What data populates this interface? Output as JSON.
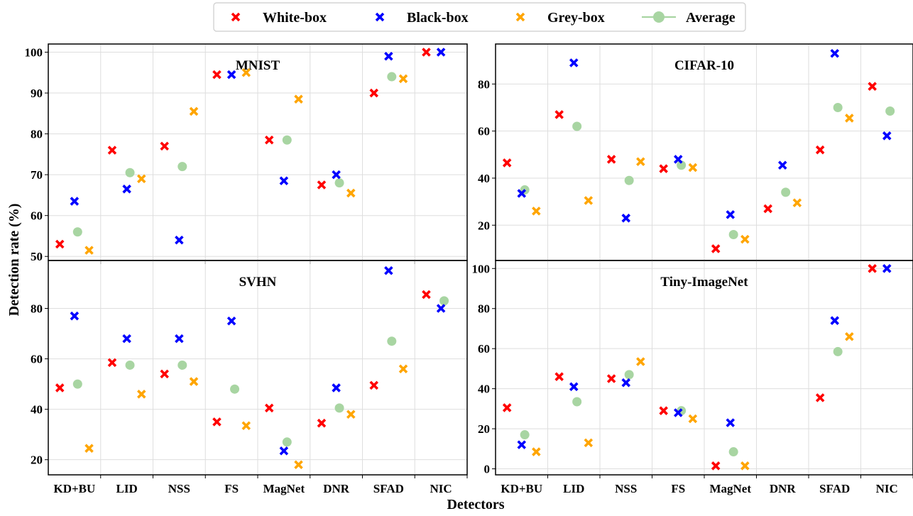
{
  "legend": {
    "items": [
      {
        "label": "White-box",
        "color": "#ff0000",
        "marker": "x"
      },
      {
        "label": "Black-box",
        "color": "#0000ff",
        "marker": "x"
      },
      {
        "label": "Grey-box",
        "color": "#ffa500",
        "marker": "x"
      },
      {
        "label": "Average",
        "color": "#a8d5a2",
        "marker": "circle-line"
      }
    ]
  },
  "xlabel": "Detectors",
  "ylabel": "Detection rate (%)",
  "chart_data": [
    {
      "type": "scatter",
      "title": "MNIST",
      "categories": [
        "KD+BU",
        "LID",
        "NSS",
        "FS",
        "MagNet",
        "DNR",
        "SFAD",
        "NIC"
      ],
      "ylim": [
        49,
        102
      ],
      "yticks": [
        50,
        60,
        70,
        80,
        90,
        100
      ],
      "show_xticklabels": false,
      "grid": true,
      "series": [
        {
          "name": "White-box",
          "values": [
            53,
            76,
            77,
            94.5,
            78.5,
            67.5,
            90,
            100
          ]
        },
        {
          "name": "Black-box",
          "values": [
            63.5,
            66.5,
            54,
            94.5,
            68.5,
            70,
            99,
            100
          ]
        },
        {
          "name": "Grey-box",
          "values": [
            51.5,
            69,
            85.5,
            95,
            88.5,
            65.5,
            93.5,
            null
          ]
        },
        {
          "name": "Average",
          "values": [
            56,
            70.5,
            72,
            null,
            78.5,
            68,
            94,
            null
          ]
        }
      ]
    },
    {
      "type": "scatter",
      "title": "CIFAR-10",
      "categories": [
        "KD+BU",
        "LID",
        "NSS",
        "FS",
        "MagNet",
        "DNR",
        "SFAD",
        "NIC"
      ],
      "ylim": [
        5,
        97
      ],
      "yticks": [
        20,
        40,
        60,
        80
      ],
      "show_xticklabels": false,
      "grid": true,
      "series": [
        {
          "name": "White-box",
          "values": [
            46.5,
            67,
            48,
            44,
            10,
            27,
            52,
            79
          ]
        },
        {
          "name": "Black-box",
          "values": [
            33.5,
            89,
            23,
            48,
            24.5,
            45.5,
            93,
            58
          ]
        },
        {
          "name": "Grey-box",
          "values": [
            26,
            30.5,
            47,
            44.5,
            14,
            29.5,
            65.5,
            null
          ]
        },
        {
          "name": "Average",
          "values": [
            35,
            62,
            39,
            45.5,
            16,
            34,
            70,
            68.5
          ]
        }
      ]
    },
    {
      "type": "scatter",
      "title": "SVHN",
      "categories": [
        "KD+BU",
        "LID",
        "NSS",
        "FS",
        "MagNet",
        "DNR",
        "SFAD",
        "NIC"
      ],
      "ylim": [
        14,
        99
      ],
      "yticks": [
        20,
        40,
        60,
        80
      ],
      "show_xticklabels": true,
      "grid": true,
      "series": [
        {
          "name": "White-box",
          "values": [
            48.5,
            58.5,
            54,
            35,
            40.5,
            34.5,
            49.5,
            85.5
          ]
        },
        {
          "name": "Black-box",
          "values": [
            77,
            68,
            68,
            75,
            23.5,
            48.5,
            95,
            80
          ]
        },
        {
          "name": "Grey-box",
          "values": [
            24.5,
            46,
            51,
            33.5,
            18,
            38,
            56,
            null
          ]
        },
        {
          "name": "Average",
          "values": [
            50,
            57.5,
            57.5,
            48,
            27,
            40.5,
            67,
            83
          ]
        }
      ]
    },
    {
      "type": "scatter",
      "title": "Tiny-ImageNet",
      "categories": [
        "KD+BU",
        "LID",
        "NSS",
        "FS",
        "MagNet",
        "DNR",
        "SFAD",
        "NIC"
      ],
      "ylim": [
        -3,
        104
      ],
      "yticks": [
        0,
        20,
        40,
        60,
        80,
        100
      ],
      "show_xticklabels": true,
      "grid": true,
      "series": [
        {
          "name": "White-box",
          "values": [
            30.5,
            46,
            45,
            29,
            1.5,
            null,
            35.5,
            100
          ]
        },
        {
          "name": "Black-box",
          "values": [
            12,
            41,
            43,
            28,
            23,
            null,
            74,
            100
          ]
        },
        {
          "name": "Grey-box",
          "values": [
            8.5,
            13,
            53.5,
            25,
            1.5,
            null,
            66,
            null
          ]
        },
        {
          "name": "Average",
          "values": [
            17,
            33.5,
            47,
            29,
            8.5,
            null,
            58.5,
            null
          ]
        }
      ]
    }
  ]
}
